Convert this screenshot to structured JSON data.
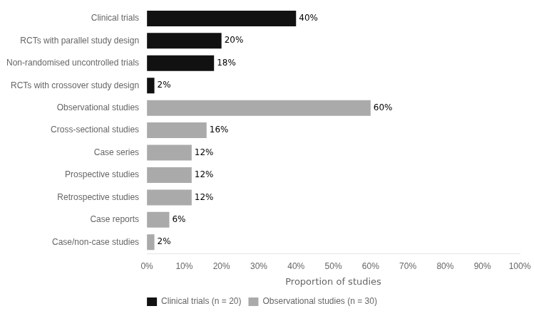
{
  "chart_data": {
    "type": "bar",
    "orientation": "horizontal",
    "categories": [
      "Case/non-case studies",
      "Case reports",
      "Retrospective studies",
      "Prospective studies",
      "Case series",
      "Cross-sectional studies",
      "Observational studies",
      "RCTs with crossover study design",
      "Non-randomised uncontrolled trials",
      "RCTs with parallel study design",
      "Clinical trials"
    ],
    "series": [
      {
        "name": "Clinical trials (n = 20)",
        "color": "#111111",
        "values": [
          null,
          null,
          null,
          null,
          null,
          null,
          null,
          2,
          18,
          20,
          40
        ],
        "value_labels": [
          null,
          null,
          null,
          null,
          null,
          null,
          null,
          "2%",
          "18%",
          "20%",
          "40%"
        ]
      },
      {
        "name": "Observational studies (n = 30)",
        "color": "#aaaaaa",
        "values": [
          2,
          6,
          12,
          12,
          12,
          16,
          60,
          null,
          null,
          null,
          null
        ],
        "value_labels": [
          "2%",
          "6%",
          "12%",
          "12%",
          "12%",
          "16%",
          "60%",
          null,
          null,
          null,
          null
        ]
      }
    ],
    "data_labels": true,
    "xlabel": "Proportion of studies",
    "xlim": [
      0,
      100
    ],
    "xticks": [
      {
        "value": 0,
        "label": "0%"
      },
      {
        "value": 10,
        "label": "10%"
      },
      {
        "value": 20,
        "label": "20%"
      },
      {
        "value": 30,
        "label": "30%"
      },
      {
        "value": 40,
        "label": "40%"
      },
      {
        "value": 50,
        "label": "50%"
      },
      {
        "value": 60,
        "label": "60%"
      },
      {
        "value": 70,
        "label": "70%"
      },
      {
        "value": 80,
        "label": "80%"
      },
      {
        "value": 90,
        "label": "90%"
      },
      {
        "value": 100,
        "label": "100%"
      }
    ],
    "grid": false,
    "legend": "bottom"
  }
}
